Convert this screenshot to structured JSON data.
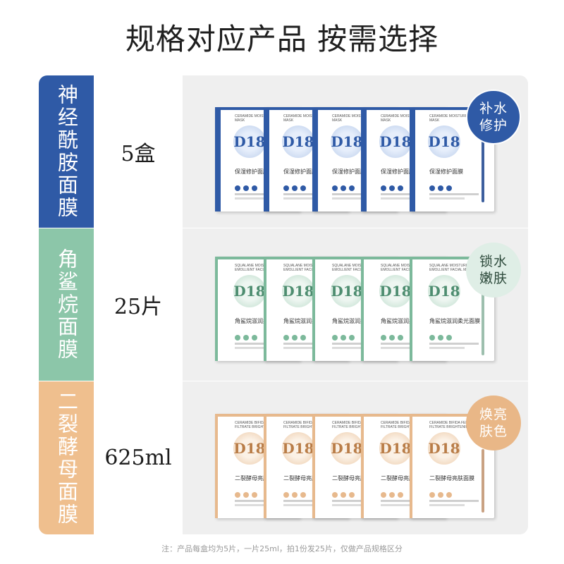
{
  "title": "规格对应产品 按需选择",
  "rows": [
    {
      "name": "神经酰胺面膜",
      "quantity": "5盒",
      "badge_line1": "补水",
      "badge_line2": "修护",
      "theme_color": "#2f5aa6",
      "box_en": "CERAMIDE MOISTURIZING REPAIR MASK",
      "box_logo": "D18",
      "box_cn": "保湿修护面膜"
    },
    {
      "name": "角鲨烷面膜",
      "quantity": "25片",
      "badge_line1": "锁水",
      "badge_line2": "嫩肤",
      "theme_color": "#8cc6a9",
      "box_en": "SQUALANE MOISTURIZING EMOLLIENT FACIAL MASK",
      "box_logo": "D18",
      "box_cn": "角鲨烷滋润柔光面膜"
    },
    {
      "name": "二裂酵母面膜",
      "quantity": "625ml",
      "badge_line1": "焕亮",
      "badge_line2": "肤色",
      "theme_color": "#efbf8e",
      "box_en": "CERAMIDE BIFIDA FERMENT FILTRATE BRIGHTENING MASK",
      "box_logo": "D18",
      "box_cn": "二裂酵母亮肤面膜"
    }
  ],
  "note": "注：产品每盒均为5片，一片25ml，拍1份发25片，仅做产品规格区分"
}
